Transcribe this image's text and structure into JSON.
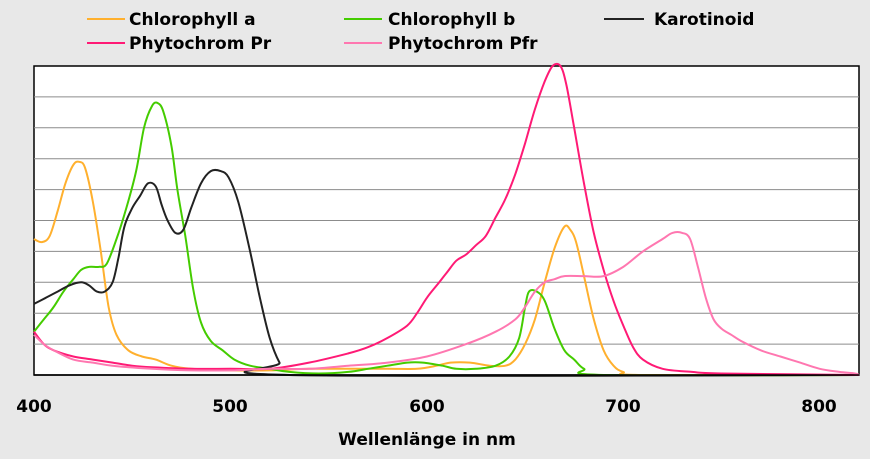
{
  "chart_data": {
    "type": "line",
    "title": "",
    "xlabel": "Wellenlänge in nm",
    "ylabel": "",
    "xlim": [
      400,
      820
    ],
    "ylim": [
      0,
      100
    ],
    "grid": true,
    "legend_position": "top",
    "x_ticks": [
      "400",
      "500",
      "600",
      "700",
      "800"
    ],
    "series": [
      {
        "name": "Chlorophyll a",
        "color": "#ffb02e",
        "points": [
          [
            400,
            44
          ],
          [
            404,
            43
          ],
          [
            408,
            45
          ],
          [
            412,
            53
          ],
          [
            416,
            62
          ],
          [
            420,
            68
          ],
          [
            423,
            69
          ],
          [
            426,
            67
          ],
          [
            430,
            56
          ],
          [
            434,
            40
          ],
          [
            438,
            22
          ],
          [
            442,
            13
          ],
          [
            448,
            8
          ],
          [
            455,
            6
          ],
          [
            462,
            5
          ],
          [
            470,
            3
          ],
          [
            480,
            2
          ],
          [
            500,
            1.5
          ],
          [
            520,
            1.5
          ],
          [
            540,
            2
          ],
          [
            560,
            2
          ],
          [
            580,
            2
          ],
          [
            595,
            2
          ],
          [
            605,
            3
          ],
          [
            612,
            4
          ],
          [
            622,
            4
          ],
          [
            632,
            3
          ],
          [
            640,
            3
          ],
          [
            645,
            5
          ],
          [
            650,
            10
          ],
          [
            655,
            18
          ],
          [
            660,
            30
          ],
          [
            665,
            41
          ],
          [
            670,
            48
          ],
          [
            673,
            47
          ],
          [
            676,
            43
          ],
          [
            680,
            32
          ],
          [
            685,
            18
          ],
          [
            690,
            8
          ],
          [
            695,
            3
          ],
          [
            700,
            1
          ],
          [
            710,
            0
          ],
          [
            820,
            0
          ]
        ]
      },
      {
        "name": "Chlorophyll b",
        "color": "#44cc00",
        "points": [
          [
            400,
            14
          ],
          [
            405,
            18
          ],
          [
            410,
            22
          ],
          [
            415,
            27
          ],
          [
            420,
            31
          ],
          [
            424,
            34
          ],
          [
            428,
            35
          ],
          [
            433,
            35
          ],
          [
            437,
            36
          ],
          [
            442,
            44
          ],
          [
            447,
            54
          ],
          [
            452,
            66
          ],
          [
            456,
            80
          ],
          [
            460,
            87
          ],
          [
            463,
            88
          ],
          [
            466,
            85
          ],
          [
            470,
            74
          ],
          [
            473,
            60
          ],
          [
            477,
            45
          ],
          [
            481,
            28
          ],
          [
            485,
            17
          ],
          [
            490,
            11
          ],
          [
            496,
            8
          ],
          [
            502,
            5
          ],
          [
            510,
            3
          ],
          [
            520,
            2
          ],
          [
            530,
            1
          ],
          [
            545,
            0.5
          ],
          [
            560,
            1
          ],
          [
            570,
            2
          ],
          [
            580,
            3
          ],
          [
            590,
            4
          ],
          [
            598,
            4
          ],
          [
            608,
            3
          ],
          [
            615,
            2
          ],
          [
            625,
            2
          ],
          [
            635,
            3
          ],
          [
            642,
            6
          ],
          [
            647,
            12
          ],
          [
            650,
            22
          ],
          [
            652,
            27
          ],
          [
            656,
            27
          ],
          [
            660,
            24
          ],
          [
            665,
            15
          ],
          [
            670,
            8
          ],
          [
            675,
            5
          ],
          [
            680,
            2
          ],
          [
            690,
            0
          ],
          [
            820,
            0
          ]
        ]
      },
      {
        "name": "Karotinoid",
        "color": "#222222",
        "points": [
          [
            400,
            23
          ],
          [
            406,
            25
          ],
          [
            412,
            27
          ],
          [
            418,
            29
          ],
          [
            424,
            30
          ],
          [
            428,
            29
          ],
          [
            432,
            27
          ],
          [
            436,
            27
          ],
          [
            440,
            30
          ],
          [
            443,
            38
          ],
          [
            446,
            48
          ],
          [
            450,
            54
          ],
          [
            454,
            58
          ],
          [
            458,
            62
          ],
          [
            462,
            61
          ],
          [
            465,
            55
          ],
          [
            468,
            50
          ],
          [
            472,
            46
          ],
          [
            476,
            47
          ],
          [
            480,
            54
          ],
          [
            485,
            62
          ],
          [
            490,
            66
          ],
          [
            495,
            66
          ],
          [
            499,
            64
          ],
          [
            504,
            56
          ],
          [
            510,
            40
          ],
          [
            515,
            25
          ],
          [
            520,
            12
          ],
          [
            525,
            4
          ],
          [
            530,
            0
          ],
          [
            820,
            0
          ]
        ]
      },
      {
        "name": "Phytochrom Pr",
        "color": "#ff1a75",
        "points": [
          [
            400,
            14
          ],
          [
            405,
            10
          ],
          [
            410,
            8
          ],
          [
            420,
            6
          ],
          [
            430,
            5
          ],
          [
            440,
            4
          ],
          [
            450,
            3
          ],
          [
            460,
            2.5
          ],
          [
            480,
            2
          ],
          [
            500,
            2
          ],
          [
            520,
            2
          ],
          [
            540,
            4
          ],
          [
            560,
            7
          ],
          [
            570,
            9
          ],
          [
            580,
            12
          ],
          [
            590,
            16
          ],
          [
            595,
            20
          ],
          [
            600,
            25
          ],
          [
            605,
            29
          ],
          [
            610,
            33
          ],
          [
            615,
            37
          ],
          [
            620,
            39
          ],
          [
            625,
            42
          ],
          [
            630,
            45
          ],
          [
            635,
            51
          ],
          [
            640,
            57
          ],
          [
            645,
            65
          ],
          [
            650,
            75
          ],
          [
            655,
            86
          ],
          [
            660,
            95
          ],
          [
            664,
            100
          ],
          [
            668,
            100
          ],
          [
            671,
            94
          ],
          [
            675,
            80
          ],
          [
            680,
            62
          ],
          [
            685,
            46
          ],
          [
            690,
            34
          ],
          [
            695,
            24
          ],
          [
            700,
            16
          ],
          [
            705,
            9
          ],
          [
            710,
            5
          ],
          [
            720,
            2
          ],
          [
            735,
            1
          ],
          [
            750,
            0.5
          ],
          [
            820,
            0
          ]
        ]
      },
      {
        "name": "Phytochrom Pfr",
        "color": "#ff77b0",
        "points": [
          [
            400,
            13
          ],
          [
            405,
            10
          ],
          [
            410,
            8
          ],
          [
            420,
            5
          ],
          [
            430,
            4
          ],
          [
            440,
            3
          ],
          [
            460,
            2
          ],
          [
            480,
            1.5
          ],
          [
            500,
            1.5
          ],
          [
            520,
            2
          ],
          [
            540,
            2
          ],
          [
            560,
            3
          ],
          [
            580,
            4
          ],
          [
            600,
            6
          ],
          [
            620,
            10
          ],
          [
            635,
            14
          ],
          [
            645,
            18
          ],
          [
            650,
            22
          ],
          [
            655,
            27
          ],
          [
            660,
            30
          ],
          [
            665,
            31
          ],
          [
            670,
            32
          ],
          [
            680,
            32
          ],
          [
            690,
            32
          ],
          [
            700,
            35
          ],
          [
            710,
            40
          ],
          [
            720,
            44
          ],
          [
            725,
            46
          ],
          [
            730,
            46
          ],
          [
            734,
            44
          ],
          [
            738,
            35
          ],
          [
            742,
            25
          ],
          [
            746,
            18
          ],
          [
            750,
            15
          ],
          [
            755,
            13
          ],
          [
            760,
            11
          ],
          [
            770,
            8
          ],
          [
            780,
            6
          ],
          [
            790,
            4
          ],
          [
            800,
            2
          ],
          [
            810,
            1
          ],
          [
            818,
            0.5
          ],
          [
            820,
            0
          ]
        ]
      }
    ]
  }
}
